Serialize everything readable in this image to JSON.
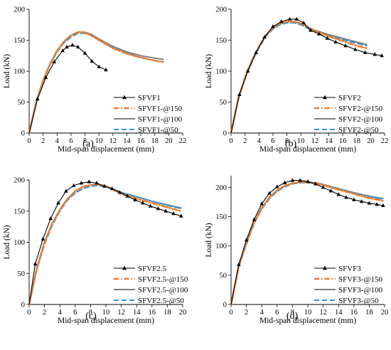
{
  "series_styles": [
    {
      "color": "#000000",
      "dash": "",
      "width": 1.1,
      "marker": "triangle"
    },
    {
      "color": "#ED7D31",
      "dash": "7,3,1.5,3",
      "width": 2.6,
      "marker": "none"
    },
    {
      "color": "#7F7F7F",
      "dash": "",
      "width": 2.0,
      "marker": "none"
    },
    {
      "color": "#2E9BDB",
      "dash": "7,4",
      "width": 2.0,
      "marker": "none"
    }
  ],
  "chart_data": [
    {
      "type": "line",
      "panel_label": "(a)",
      "xlabel": "Mid-span displacement (mm)",
      "ylabel": "Load (kN)",
      "xlim": [
        0,
        22
      ],
      "ylim": [
        0,
        200
      ],
      "xticks": [
        0,
        2,
        4,
        6,
        8,
        10,
        12,
        14,
        16,
        18,
        20,
        22
      ],
      "yticks": [
        0,
        50,
        100,
        150,
        200
      ],
      "grid": false,
      "legend_position": "bottom-right",
      "series": [
        {
          "name": "SFVF1",
          "x": [
            0,
            1.2,
            2.4,
            3.6,
            4.8,
            5.4,
            6.2,
            7.0,
            8.0,
            9.0,
            10.0,
            11.0
          ],
          "y": [
            0,
            55,
            90,
            115,
            133,
            139,
            142,
            139,
            129,
            116,
            107,
            102
          ]
        },
        {
          "name": "SFVF1-@150",
          "x": [
            0,
            1,
            2,
            3,
            4,
            5,
            6,
            7,
            7.6,
            8.5,
            10,
            12,
            14,
            16,
            18,
            19.2
          ],
          "y": [
            0,
            50,
            85,
            112,
            133,
            148,
            158,
            163,
            163,
            160,
            150,
            137,
            128,
            122,
            117,
            115
          ]
        },
        {
          "name": "SFVF1-@100",
          "x": [
            0,
            1,
            2,
            3,
            4,
            5,
            6,
            7,
            8,
            9,
            10,
            12,
            14,
            16,
            18,
            19.2
          ],
          "y": [
            0,
            50,
            85,
            112,
            133,
            148,
            158,
            163,
            163,
            159,
            152,
            140,
            131,
            125,
            121,
            119
          ]
        },
        {
          "name": "SFVF1-@50",
          "x": [
            0,
            1,
            2,
            3,
            4,
            5,
            6,
            7,
            8,
            9,
            10,
            12,
            14,
            16,
            18,
            19.2
          ],
          "y": [
            0,
            49,
            84,
            110,
            131,
            146,
            155,
            161,
            161,
            157,
            150,
            138,
            129,
            122,
            117,
            115
          ]
        }
      ]
    },
    {
      "type": "line",
      "panel_label": "(b)",
      "xlabel": "Mid-span displacement (mm)",
      "ylabel": "Load (kN)",
      "xlim": [
        0,
        22
      ],
      "ylim": [
        0,
        200
      ],
      "xticks": [
        0,
        2,
        4,
        6,
        8,
        10,
        12,
        14,
        16,
        18,
        20,
        22
      ],
      "yticks": [
        0,
        50,
        100,
        150,
        200
      ],
      "grid": false,
      "legend_position": "bottom-right",
      "series": [
        {
          "name": "SFVF2",
          "x": [
            0,
            1.2,
            2.4,
            3.6,
            4.8,
            6.0,
            7.2,
            8.4,
            9.4,
            10.4,
            11.4,
            12.6,
            13.8,
            15.0,
            16.4,
            17.8,
            19.2,
            20.6,
            21.6
          ],
          "y": [
            0,
            62,
            100,
            130,
            155,
            172,
            180,
            184,
            184,
            178,
            166,
            160,
            153,
            147,
            141,
            135,
            130,
            127,
            125
          ]
        },
        {
          "name": "SFVF2-@150",
          "x": [
            0,
            1,
            2,
            3,
            4,
            5,
            6,
            7,
            8,
            9,
            10,
            11,
            12,
            14,
            16,
            18,
            19.4
          ],
          "y": [
            0,
            55,
            90,
            118,
            140,
            158,
            170,
            177,
            180,
            180,
            177,
            171,
            165,
            156,
            149,
            141,
            137
          ]
        },
        {
          "name": "SFVF2-@100",
          "x": [
            0,
            1,
            2,
            3,
            4,
            5,
            6,
            7,
            8,
            9,
            10,
            11,
            12,
            14,
            16,
            18,
            19.4
          ],
          "y": [
            0,
            55,
            90,
            118,
            140,
            158,
            170,
            177,
            180,
            180,
            177,
            171,
            166,
            159,
            153,
            147,
            143
          ]
        },
        {
          "name": "SFVF2-@50",
          "x": [
            0,
            1,
            2,
            3,
            4,
            5,
            6,
            7,
            8,
            9,
            10,
            11,
            12,
            14,
            16,
            18,
            19.4
          ],
          "y": [
            0,
            53,
            88,
            116,
            138,
            156,
            168,
            175,
            178,
            178,
            175,
            169,
            164,
            157,
            151,
            145,
            141
          ]
        }
      ]
    },
    {
      "type": "line",
      "panel_label": "(c)",
      "xlabel": "Mid-span displacement (mm)",
      "ylabel": "Load (kN)",
      "xlim": [
        0,
        20
      ],
      "ylim": [
        0,
        200
      ],
      "xticks": [
        0,
        2,
        4,
        6,
        8,
        10,
        12,
        14,
        16,
        18,
        20
      ],
      "yticks": [
        0,
        50,
        100,
        150,
        200
      ],
      "grid": false,
      "legend_position": "bottom-right",
      "series": [
        {
          "name": "SFVF2.5",
          "x": [
            0,
            0.8,
            1.8,
            2.8,
            3.8,
            4.8,
            5.8,
            6.8,
            7.8,
            8.8,
            9.8,
            10.8,
            11.8,
            12.8,
            13.8,
            14.8,
            15.8,
            16.8,
            17.8,
            18.8,
            19.8
          ],
          "y": [
            0,
            65,
            105,
            138,
            163,
            182,
            191,
            195,
            197,
            195,
            190,
            186,
            180,
            174,
            168,
            163,
            158,
            154,
            150,
            146,
            142
          ]
        },
        {
          "name": "SFVF2.5-@150",
          "x": [
            0,
            1,
            2,
            3,
            4,
            5,
            6,
            7,
            8,
            9,
            10,
            11,
            12,
            14,
            16,
            18,
            19.8
          ],
          "y": [
            0,
            58,
            100,
            130,
            152,
            170,
            182,
            189,
            192,
            193,
            190,
            184,
            178,
            170,
            163,
            156,
            150
          ]
        },
        {
          "name": "SFVF2.5-@100",
          "x": [
            0,
            1,
            2,
            3,
            4,
            5,
            6,
            7,
            8,
            9,
            10,
            11,
            12,
            14,
            16,
            18,
            19.8
          ],
          "y": [
            0,
            58,
            100,
            130,
            152,
            170,
            182,
            189,
            192,
            193,
            190,
            185,
            180,
            173,
            166,
            160,
            155
          ]
        },
        {
          "name": "SFVF2.5-@50",
          "x": [
            0,
            1,
            2,
            3,
            4,
            5,
            6,
            7,
            8,
            9,
            10,
            11,
            12,
            14,
            16,
            18,
            19.8
          ],
          "y": [
            0,
            56,
            97,
            127,
            150,
            168,
            179,
            186,
            190,
            191,
            189,
            185,
            180,
            173,
            166,
            159,
            154
          ]
        }
      ]
    },
    {
      "type": "line",
      "panel_label": "(d)",
      "xlabel": "Mid-span displacement (mm)",
      "ylabel": "Load (kN)",
      "xlim": [
        0,
        20
      ],
      "ylim": [
        0,
        220
      ],
      "xticks": [
        0,
        2,
        4,
        6,
        8,
        10,
        12,
        14,
        16,
        18,
        20
      ],
      "yticks": [
        0,
        50,
        100,
        150,
        200
      ],
      "grid": false,
      "legend_position": "bottom-right",
      "series": [
        {
          "name": "SFVF3",
          "x": [
            0,
            1,
            2,
            3,
            4,
            5,
            6,
            7,
            8,
            9,
            10,
            11,
            12,
            13,
            14,
            15,
            16,
            17,
            18,
            19,
            19.8
          ],
          "y": [
            0,
            68,
            110,
            145,
            172,
            190,
            201,
            208,
            212,
            212,
            210,
            206,
            200,
            194,
            188,
            183,
            179,
            176,
            173,
            171,
            169
          ]
        },
        {
          "name": "SFVF3-@150",
          "x": [
            0,
            1,
            2,
            3,
            4,
            5,
            6,
            7,
            8,
            9,
            10,
            11,
            12,
            14,
            16,
            18,
            19.8
          ],
          "y": [
            0,
            65,
            105,
            140,
            165,
            183,
            195,
            203,
            207,
            209,
            209,
            207,
            204,
            196,
            189,
            182,
            177
          ]
        },
        {
          "name": "SFVF3-@100",
          "x": [
            0,
            1,
            2,
            3,
            4,
            5,
            6,
            7,
            8,
            9,
            10,
            11,
            12,
            14,
            16,
            18,
            19.8
          ],
          "y": [
            0,
            65,
            105,
            140,
            165,
            183,
            195,
            203,
            207,
            209,
            209,
            208,
            205,
            198,
            191,
            185,
            181
          ]
        },
        {
          "name": "SFVF3-@50",
          "x": [
            0,
            1,
            2,
            3,
            4,
            5,
            6,
            7,
            8,
            9,
            10,
            11,
            12,
            14,
            16,
            18,
            19.8
          ],
          "y": [
            0,
            63,
            103,
            138,
            163,
            181,
            193,
            201,
            206,
            208,
            208,
            207,
            204,
            197,
            190,
            184,
            180
          ]
        }
      ]
    }
  ]
}
